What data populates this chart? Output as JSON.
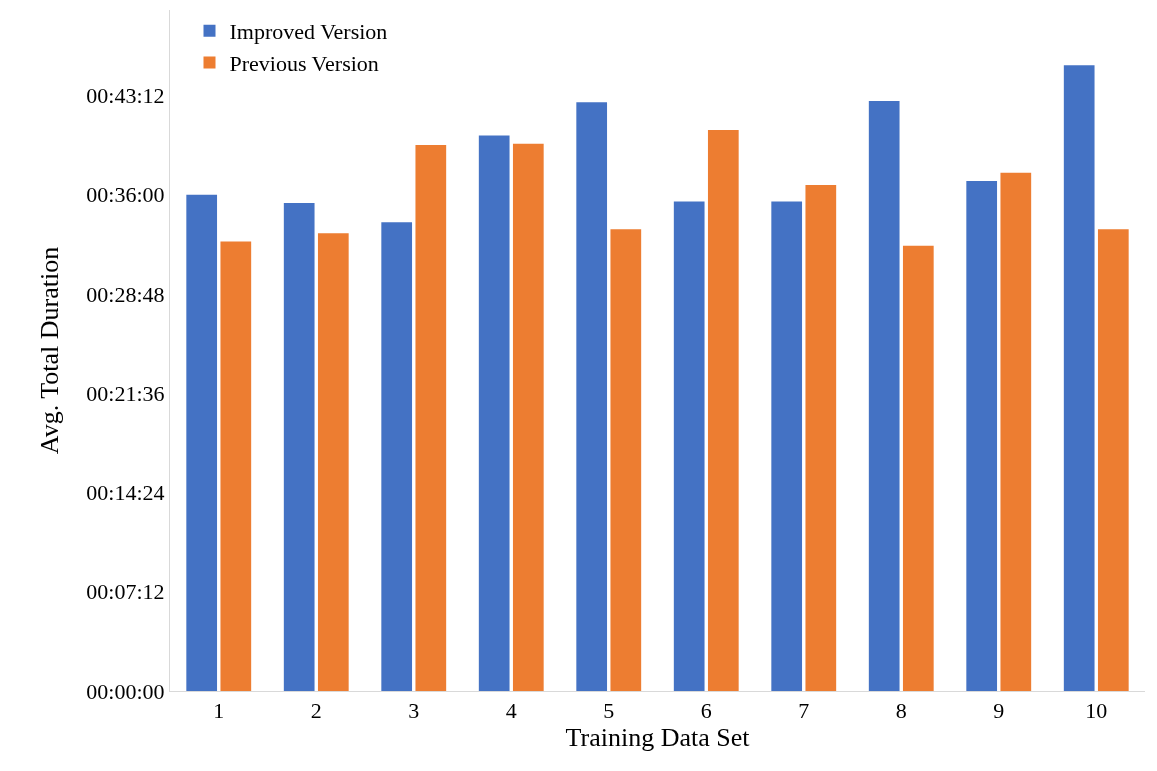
{
  "chart_data": {
    "type": "bar",
    "xlabel": "Training Data Set",
    "ylabel": "Avg. Total Duration",
    "categories": [
      "1",
      "2",
      "3",
      "4",
      "5",
      "6",
      "7",
      "8",
      "9",
      "10"
    ],
    "series": [
      {
        "name": "Improved Version",
        "color": "#4472c4",
        "values": [
          36.0,
          35.4,
          34.0,
          40.3,
          42.7,
          35.5,
          35.5,
          42.8,
          37.0,
          45.4
        ]
      },
      {
        "name": "Previous Version",
        "color": "#ed7d31",
        "values": [
          32.6,
          33.2,
          39.6,
          39.7,
          33.5,
          40.7,
          36.7,
          32.3,
          37.6,
          33.5
        ]
      }
    ],
    "ylim": [
      0,
      49.4
    ],
    "yticks": [
      {
        "value": 0,
        "label": "00:00:00"
      },
      {
        "value": 7.2,
        "label": "00:07:12"
      },
      {
        "value": 14.4,
        "label": "00:14:24"
      },
      {
        "value": 21.6,
        "label": "00:21:36"
      },
      {
        "value": 28.8,
        "label": "00:28:48"
      },
      {
        "value": 36,
        "label": "00:36:00"
      },
      {
        "value": 43.2,
        "label": "00:43:12"
      }
    ],
    "grid": false,
    "legend": "top left"
  }
}
